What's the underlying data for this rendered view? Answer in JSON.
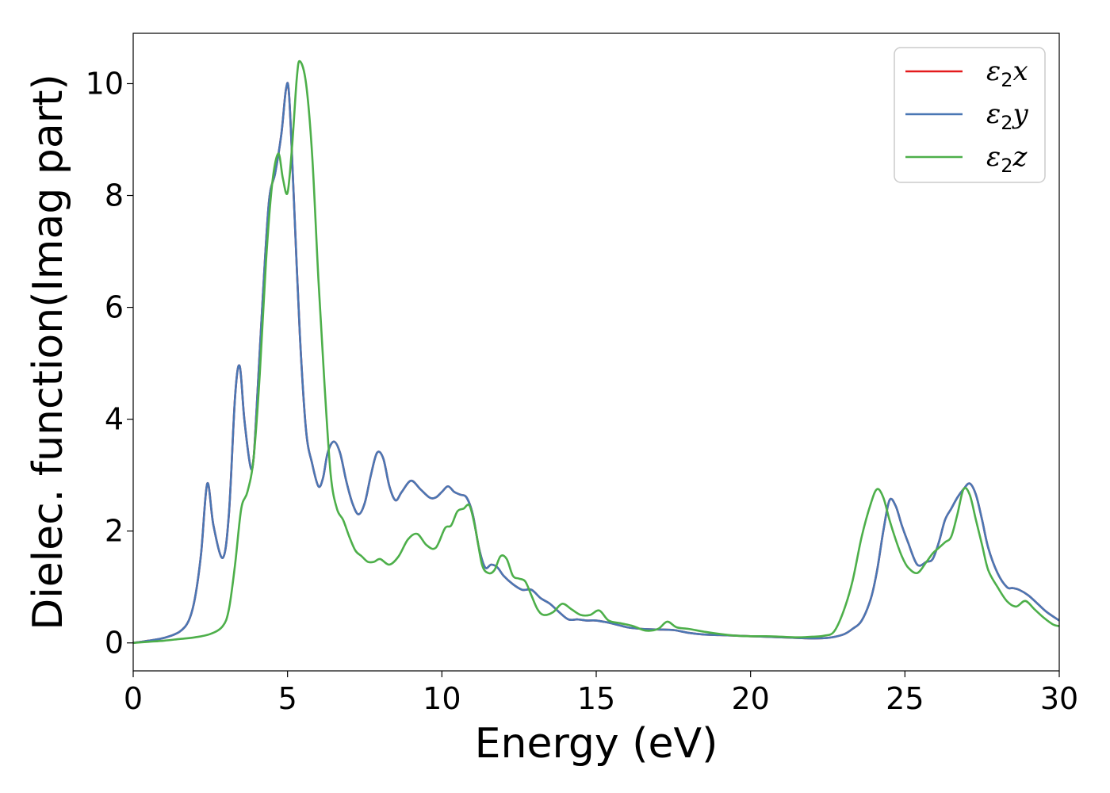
{
  "chart_data": {
    "type": "line",
    "xlabel": "Energy (eV)",
    "ylabel": "Dielec. function(Imag part)",
    "xlim": [
      0,
      30
    ],
    "ylim": [
      -0.5,
      10.9
    ],
    "xticks": [
      0,
      5,
      10,
      15,
      20,
      25,
      30
    ],
    "yticks": [
      0,
      2,
      4,
      6,
      8,
      10
    ],
    "grid": false,
    "legend_position": "top-right",
    "series": [
      {
        "name": "ε2x",
        "legend_base": "ε",
        "legend_sub": "2",
        "legend_axis": "x",
        "color": "#e41a1c",
        "x": [
          0,
          0.5,
          1,
          1.5,
          1.8,
          2.0,
          2.2,
          2.4,
          2.6,
          2.9,
          3.1,
          3.3,
          3.45,
          3.6,
          3.8,
          3.9,
          4.0,
          4.2,
          4.4,
          4.6,
          4.8,
          4.95,
          5.05,
          5.2,
          5.4,
          5.6,
          5.8,
          6.0,
          6.15,
          6.3,
          6.5,
          6.7,
          6.9,
          7.1,
          7.3,
          7.5,
          7.7,
          7.9,
          8.1,
          8.3,
          8.5,
          8.7,
          9.0,
          9.3,
          9.6,
          9.8,
          10.0,
          10.2,
          10.4,
          10.6,
          10.8,
          11.0,
          11.2,
          11.4,
          11.6,
          11.8,
          12.0,
          12.3,
          12.6,
          12.9,
          13.2,
          13.5,
          13.8,
          14.1,
          14.4,
          14.7,
          15.0,
          15.5,
          16.0,
          16.5,
          17.0,
          17.5,
          18.0,
          18.5,
          19.0,
          19.5,
          20.0,
          20.5,
          21.0,
          21.5,
          22.0,
          22.5,
          23.0,
          23.3,
          23.6,
          23.9,
          24.1,
          24.3,
          24.5,
          24.7,
          24.9,
          25.1,
          25.4,
          25.7,
          25.9,
          26.1,
          26.3,
          26.5,
          26.7,
          26.9,
          27.1,
          27.3,
          27.5,
          27.7,
          28.0,
          28.3,
          28.5,
          28.7,
          29.0,
          29.3,
          29.6,
          30.0
        ],
        "y": [
          0.0,
          0.04,
          0.09,
          0.2,
          0.4,
          0.8,
          1.6,
          2.85,
          2.1,
          1.52,
          2.3,
          4.4,
          4.95,
          4.0,
          3.15,
          3.3,
          4.2,
          6.2,
          7.9,
          8.4,
          9.1,
          9.9,
          9.8,
          8.0,
          5.5,
          3.8,
          3.2,
          2.8,
          2.95,
          3.4,
          3.6,
          3.4,
          2.9,
          2.5,
          2.3,
          2.5,
          3.0,
          3.4,
          3.3,
          2.8,
          2.55,
          2.7,
          2.9,
          2.75,
          2.6,
          2.6,
          2.7,
          2.8,
          2.7,
          2.65,
          2.6,
          2.3,
          1.7,
          1.35,
          1.4,
          1.35,
          1.2,
          1.05,
          0.95,
          0.95,
          0.8,
          0.7,
          0.55,
          0.42,
          0.42,
          0.4,
          0.4,
          0.35,
          0.28,
          0.25,
          0.24,
          0.23,
          0.18,
          0.15,
          0.14,
          0.13,
          0.12,
          0.11,
          0.1,
          0.09,
          0.08,
          0.09,
          0.15,
          0.25,
          0.4,
          0.8,
          1.3,
          2.0,
          2.55,
          2.45,
          2.1,
          1.8,
          1.4,
          1.45,
          1.5,
          1.8,
          2.2,
          2.4,
          2.6,
          2.75,
          2.85,
          2.65,
          2.2,
          1.7,
          1.25,
          1.0,
          0.98,
          0.95,
          0.85,
          0.7,
          0.55,
          0.4
        ]
      },
      {
        "name": "ε2y",
        "legend_base": "ε",
        "legend_sub": "2",
        "legend_axis": "y",
        "color": "#4a77b4",
        "x": [
          0,
          0.5,
          1,
          1.5,
          1.8,
          2.0,
          2.2,
          2.4,
          2.6,
          2.9,
          3.1,
          3.3,
          3.45,
          3.6,
          3.8,
          3.9,
          4.0,
          4.2,
          4.4,
          4.6,
          4.8,
          4.95,
          5.05,
          5.2,
          5.4,
          5.6,
          5.8,
          6.0,
          6.15,
          6.3,
          6.5,
          6.7,
          6.9,
          7.1,
          7.3,
          7.5,
          7.7,
          7.9,
          8.1,
          8.3,
          8.5,
          8.7,
          9.0,
          9.3,
          9.6,
          9.8,
          10.0,
          10.2,
          10.4,
          10.6,
          10.8,
          11.0,
          11.2,
          11.4,
          11.6,
          11.8,
          12.0,
          12.3,
          12.6,
          12.9,
          13.2,
          13.5,
          13.8,
          14.1,
          14.4,
          14.7,
          15.0,
          15.5,
          16.0,
          16.5,
          17.0,
          17.5,
          18.0,
          18.5,
          19.0,
          19.5,
          20.0,
          20.5,
          21.0,
          21.5,
          22.0,
          22.5,
          23.0,
          23.3,
          23.6,
          23.9,
          24.1,
          24.3,
          24.5,
          24.7,
          24.9,
          25.1,
          25.4,
          25.7,
          25.9,
          26.1,
          26.3,
          26.5,
          26.7,
          26.9,
          27.1,
          27.3,
          27.5,
          27.7,
          28.0,
          28.3,
          28.5,
          28.7,
          29.0,
          29.3,
          29.6,
          30.0
        ],
        "y": [
          0.0,
          0.04,
          0.09,
          0.2,
          0.4,
          0.8,
          1.6,
          2.85,
          2.1,
          1.52,
          2.3,
          4.4,
          4.95,
          4.0,
          3.15,
          3.3,
          4.2,
          6.2,
          7.9,
          8.4,
          9.1,
          9.9,
          9.8,
          8.0,
          5.5,
          3.8,
          3.2,
          2.8,
          2.95,
          3.4,
          3.6,
          3.4,
          2.9,
          2.5,
          2.3,
          2.5,
          3.0,
          3.4,
          3.3,
          2.8,
          2.55,
          2.7,
          2.9,
          2.75,
          2.6,
          2.6,
          2.7,
          2.8,
          2.7,
          2.65,
          2.6,
          2.3,
          1.7,
          1.35,
          1.4,
          1.35,
          1.2,
          1.05,
          0.95,
          0.95,
          0.8,
          0.7,
          0.55,
          0.42,
          0.42,
          0.4,
          0.4,
          0.35,
          0.28,
          0.25,
          0.24,
          0.23,
          0.18,
          0.15,
          0.14,
          0.13,
          0.12,
          0.11,
          0.1,
          0.09,
          0.08,
          0.09,
          0.15,
          0.25,
          0.4,
          0.8,
          1.3,
          2.0,
          2.55,
          2.45,
          2.1,
          1.8,
          1.4,
          1.45,
          1.5,
          1.8,
          2.2,
          2.4,
          2.6,
          2.75,
          2.85,
          2.65,
          2.2,
          1.7,
          1.25,
          1.0,
          0.98,
          0.95,
          0.85,
          0.7,
          0.55,
          0.4
        ]
      },
      {
        "name": "ε2z",
        "legend_base": "ε",
        "legend_sub": "2",
        "legend_axis": "z",
        "color": "#4daf4a",
        "x": [
          0,
          0.5,
          1,
          1.5,
          2.0,
          2.5,
          2.9,
          3.1,
          3.3,
          3.5,
          3.7,
          3.9,
          4.1,
          4.3,
          4.5,
          4.7,
          4.85,
          5.0,
          5.15,
          5.3,
          5.4,
          5.6,
          5.8,
          6.0,
          6.2,
          6.4,
          6.6,
          6.8,
          7.0,
          7.2,
          7.4,
          7.6,
          7.8,
          8.0,
          8.3,
          8.6,
          8.9,
          9.2,
          9.5,
          9.8,
          10.1,
          10.3,
          10.5,
          10.7,
          10.9,
          11.1,
          11.3,
          11.5,
          11.7,
          11.9,
          12.1,
          12.3,
          12.5,
          12.7,
          12.9,
          13.1,
          13.3,
          13.6,
          13.9,
          14.2,
          14.5,
          14.8,
          15.1,
          15.4,
          15.8,
          16.2,
          16.6,
          17.0,
          17.3,
          17.6,
          18.0,
          18.5,
          19.0,
          19.5,
          20.0,
          20.5,
          21.0,
          21.5,
          22.0,
          22.4,
          22.7,
          23.0,
          23.3,
          23.6,
          23.9,
          24.1,
          24.3,
          24.5,
          24.7,
          24.9,
          25.1,
          25.4,
          25.7,
          25.9,
          26.1,
          26.3,
          26.5,
          26.7,
          26.9,
          27.1,
          27.3,
          27.5,
          27.7,
          28.0,
          28.3,
          28.6,
          28.9,
          29.2,
          29.5,
          29.8,
          30.0
        ],
        "y": [
          0.0,
          0.02,
          0.04,
          0.07,
          0.1,
          0.16,
          0.3,
          0.6,
          1.4,
          2.4,
          2.7,
          3.3,
          4.8,
          6.8,
          8.2,
          8.75,
          8.3,
          8.05,
          8.9,
          10.1,
          10.4,
          10.0,
          8.7,
          6.5,
          4.6,
          3.0,
          2.4,
          2.2,
          1.9,
          1.65,
          1.55,
          1.45,
          1.45,
          1.5,
          1.4,
          1.55,
          1.85,
          1.95,
          1.75,
          1.7,
          2.05,
          2.1,
          2.35,
          2.4,
          2.45,
          2.0,
          1.4,
          1.25,
          1.3,
          1.55,
          1.5,
          1.2,
          1.15,
          1.1,
          0.85,
          0.6,
          0.5,
          0.55,
          0.7,
          0.6,
          0.5,
          0.5,
          0.58,
          0.4,
          0.35,
          0.3,
          0.22,
          0.25,
          0.38,
          0.28,
          0.25,
          0.2,
          0.16,
          0.13,
          0.12,
          0.12,
          0.11,
          0.1,
          0.11,
          0.13,
          0.2,
          0.55,
          1.1,
          1.9,
          2.5,
          2.75,
          2.6,
          2.2,
          1.85,
          1.55,
          1.35,
          1.25,
          1.45,
          1.6,
          1.7,
          1.8,
          1.9,
          2.3,
          2.75,
          2.65,
          2.2,
          1.75,
          1.3,
          1.0,
          0.75,
          0.65,
          0.75,
          0.6,
          0.45,
          0.33,
          0.3
        ]
      }
    ]
  }
}
